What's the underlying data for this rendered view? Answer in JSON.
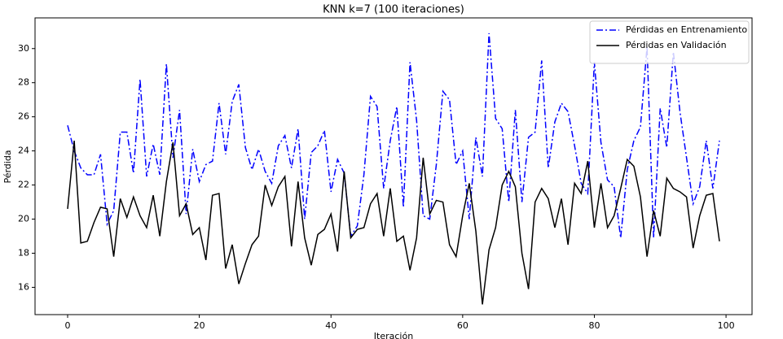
{
  "chart_data": {
    "type": "line",
    "title": "KNN k=7 (100 iteraciones)",
    "xlabel": "Iteración",
    "ylabel": "Pérdida",
    "x": [
      0,
      1,
      2,
      3,
      4,
      5,
      6,
      7,
      8,
      9,
      10,
      11,
      12,
      13,
      14,
      15,
      16,
      17,
      18,
      19,
      20,
      21,
      22,
      23,
      24,
      25,
      26,
      27,
      28,
      29,
      30,
      31,
      32,
      33,
      34,
      35,
      36,
      37,
      38,
      39,
      40,
      41,
      42,
      43,
      44,
      45,
      46,
      47,
      48,
      49,
      50,
      51,
      52,
      53,
      54,
      55,
      56,
      57,
      58,
      59,
      60,
      61,
      62,
      63,
      64,
      65,
      66,
      67,
      68,
      69,
      70,
      71,
      72,
      73,
      74,
      75,
      76,
      77,
      78,
      79,
      80,
      81,
      82,
      83,
      84,
      85,
      86,
      87,
      88,
      89,
      90,
      91,
      92,
      93,
      94,
      95,
      96,
      97,
      98,
      99
    ],
    "series": [
      {
        "name": "Pérdidas en Entrenamiento",
        "color": "#0000ff",
        "style": "dashdot",
        "values": [
          25.5,
          24.0,
          23.0,
          22.6,
          22.6,
          23.8,
          19.7,
          20.5,
          25.1,
          25.1,
          22.7,
          28.2,
          22.5,
          24.4,
          22.6,
          29.1,
          23.6,
          26.4,
          20.3,
          24.1,
          22.2,
          23.2,
          23.4,
          26.8,
          23.8,
          26.9,
          27.9,
          24.2,
          22.9,
          24.1,
          22.8,
          22.1,
          24.3,
          24.9,
          23.0,
          25.3,
          20.0,
          23.9,
          24.3,
          25.2,
          21.6,
          23.5,
          22.7,
          19.0,
          19.6,
          22.6,
          27.2,
          26.6,
          21.8,
          24.6,
          26.6,
          20.7,
          29.2,
          25.8,
          20.2,
          20.0,
          23.2,
          27.5,
          27.0,
          23.2,
          24.0,
          20.0,
          24.8,
          22.5,
          30.9,
          25.9,
          25.3,
          21.0,
          26.4,
          21.0,
          24.8,
          25.1,
          29.3,
          23.0,
          25.7,
          26.8,
          26.3,
          24.3,
          22.1,
          21.5,
          29.2,
          24.5,
          22.3,
          21.9,
          18.9,
          22.9,
          24.6,
          25.4,
          30.1,
          18.9,
          26.5,
          24.2,
          29.8,
          26.3,
          23.6,
          20.9,
          21.9,
          24.6,
          21.8,
          24.6
        ]
      },
      {
        "name": "Pérdidas en Validación",
        "color": "#000000",
        "style": "solid",
        "values": [
          20.6,
          24.6,
          18.6,
          18.7,
          19.8,
          20.7,
          20.6,
          17.8,
          21.2,
          20.1,
          21.3,
          20.2,
          19.5,
          21.4,
          19.0,
          22.2,
          24.5,
          20.2,
          20.9,
          19.1,
          19.5,
          17.6,
          21.4,
          21.5,
          17.1,
          18.5,
          16.2,
          17.4,
          18.5,
          19.0,
          22.0,
          20.8,
          21.9,
          22.5,
          18.4,
          22.2,
          18.9,
          17.3,
          19.1,
          19.4,
          20.3,
          18.1,
          22.8,
          18.9,
          19.4,
          19.5,
          20.9,
          21.5,
          19.0,
          21.8,
          18.7,
          19.0,
          17.0,
          18.9,
          23.6,
          20.3,
          21.1,
          21.0,
          18.5,
          17.8,
          20.2,
          22.1,
          19.3,
          15.0,
          18.2,
          19.5,
          22.0,
          22.8,
          21.9,
          18.0,
          15.9,
          21.0,
          21.8,
          21.2,
          19.5,
          21.2,
          18.5,
          22.1,
          21.5,
          23.4,
          19.5,
          22.1,
          19.5,
          20.2,
          21.8,
          23.5,
          23.1,
          21.3,
          17.8,
          20.5,
          19.0,
          22.4,
          21.8,
          21.6,
          21.3,
          18.3,
          20.2,
          21.4,
          21.5,
          18.7
        ]
      }
    ],
    "xlim": [
      -4.95,
      103.95
    ],
    "ylim": [
      14.4,
      31.8
    ],
    "xticks": [
      0,
      20,
      40,
      60,
      80,
      100
    ],
    "yticks": [
      16,
      18,
      20,
      22,
      24,
      26,
      28,
      30
    ],
    "legend": "upper right",
    "grid": false
  }
}
